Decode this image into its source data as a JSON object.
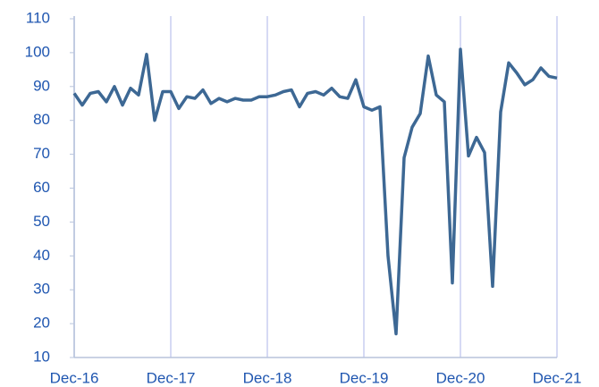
{
  "chart_data": {
    "type": "line",
    "categories": [
      "Dec-16",
      null,
      null,
      null,
      null,
      null,
      null,
      null,
      null,
      null,
      null,
      null,
      "Dec-17",
      null,
      null,
      null,
      null,
      null,
      null,
      null,
      null,
      null,
      null,
      null,
      "Dec-18",
      null,
      null,
      null,
      null,
      null,
      null,
      null,
      null,
      null,
      null,
      null,
      "Dec-19",
      null,
      null,
      null,
      null,
      null,
      null,
      null,
      null,
      null,
      null,
      null,
      "Dec-20",
      null,
      null,
      null,
      null,
      null,
      null,
      null,
      null,
      null,
      null,
      null,
      "Dec-21"
    ],
    "series": [
      {
        "color": "#3d6894",
        "values": [
          88,
          84.5,
          88,
          88.5,
          85.5,
          90,
          84.5,
          89.5,
          87.5,
          99.5,
          80,
          88.5,
          88.5,
          83.5,
          87,
          86.5,
          89,
          85,
          86.5,
          85.5,
          86.5,
          86,
          86,
          87,
          87,
          87.5,
          88.5,
          89,
          84,
          88,
          88.5,
          87.5,
          89.5,
          87,
          86.5,
          92,
          84,
          83,
          84,
          40,
          17,
          69,
          78,
          82,
          99,
          87.5,
          85.5,
          32,
          101,
          69.5,
          75,
          70.5,
          31,
          82.5,
          97,
          94,
          90.5,
          92,
          95.5,
          93,
          92.5
        ]
      }
    ],
    "ylim": [
      10,
      110
    ],
    "yticks": [
      10,
      20,
      30,
      40,
      50,
      60,
      70,
      80,
      90,
      100,
      110
    ],
    "grid": "x"
  }
}
